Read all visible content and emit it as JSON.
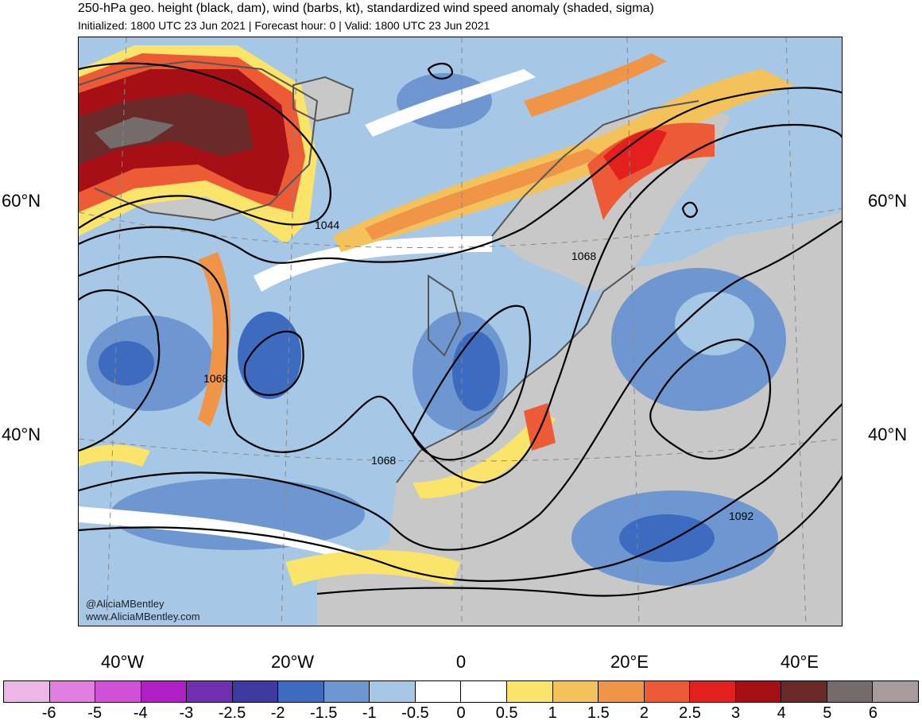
{
  "header": {
    "title": "250-hPa geo. height (black, dam), wind (barbs, kt), standardized wind speed anomaly (shaded, sigma)",
    "subtitle": "Initialized: 1800 UTC 23 Jun 2021 | Forecast hour: 0 | Valid: 1800 UTC 23 Jun 2021"
  },
  "map": {
    "lat_labels": [
      "60°N",
      "40°N"
    ],
    "lon_labels": [
      "40°W",
      "20°W",
      "0",
      "20°E",
      "40°E"
    ],
    "contour_labels": [
      "1044",
      "1068",
      "1068",
      "1068",
      "1092"
    ],
    "credits": [
      "@AliciaMBentley",
      "www.AliciaMBentley.com"
    ],
    "colors": {
      "land": "#c8c8c8",
      "coast": "#555555",
      "contour": "#000000",
      "grid": "#888888"
    }
  },
  "colorbar": {
    "colors": [
      "#ecb6e6",
      "#e07fe0",
      "#d050d8",
      "#b01ec6",
      "#6f2fae",
      "#3e3aa2",
      "#3d6bbf",
      "#6e97d2",
      "#a6c8e6",
      "#ffffff",
      "#ffffff",
      "#fae46a",
      "#f4c25a",
      "#f09448",
      "#ec5a36",
      "#e4201e",
      "#a50f15",
      "#6a2a2a",
      "#756b6b",
      "#a79b9b"
    ],
    "labels": [
      "-6",
      "-5",
      "-4",
      "-3",
      "-2.5",
      "-2",
      "-1.5",
      "-1",
      "-0.5",
      "0",
      "0.5",
      "1",
      "1.5",
      "2",
      "2.5",
      "3",
      "4",
      "5",
      "6"
    ]
  }
}
